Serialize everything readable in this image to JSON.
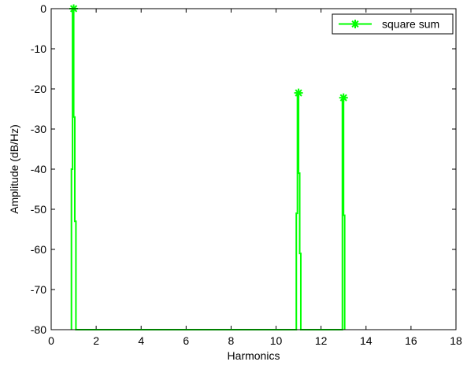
{
  "chart_data": {
    "type": "line",
    "title": "",
    "xlabel": "Harmonics",
    "ylabel": "Amplitude (dB/Hz)",
    "xlim": [
      0,
      18
    ],
    "ylim": [
      -80,
      0
    ],
    "x_ticks": [
      0,
      2,
      4,
      6,
      8,
      10,
      12,
      14,
      16,
      18
    ],
    "x_tick_labels": [
      "0",
      "2",
      "4",
      "6",
      "8",
      "10",
      "12",
      "14",
      "16",
      "18"
    ],
    "y_ticks": [
      0,
      -10,
      -20,
      -30,
      -40,
      -50,
      -60,
      -70,
      -80
    ],
    "y_tick_labels": [
      "0",
      "-10",
      "-20",
      "-30",
      "-40",
      "-50",
      "-60",
      "-70",
      "-80"
    ],
    "grid": false,
    "legend_position": "top-right",
    "series": [
      {
        "name": "square sum",
        "color": "#00ff00",
        "marker": "asterisk",
        "markers": [
          {
            "x": 1,
            "y": 0
          },
          {
            "x": 11,
            "y": -21
          },
          {
            "x": 13,
            "y": -22.2
          }
        ],
        "points": [
          {
            "x": 0.9,
            "y": -80
          },
          {
            "x": 0.9,
            "y": -40
          },
          {
            "x": 0.95,
            "y": -40
          },
          {
            "x": 0.95,
            "y": 0
          },
          {
            "x": 1.0,
            "y": 0
          },
          {
            "x": 1.0,
            "y": -27
          },
          {
            "x": 1.05,
            "y": -27
          },
          {
            "x": 1.05,
            "y": -53
          },
          {
            "x": 1.1,
            "y": -53
          },
          {
            "x": 1.1,
            "y": -80
          },
          {
            "x": 10.9,
            "y": -80
          },
          {
            "x": 10.9,
            "y": -51
          },
          {
            "x": 10.95,
            "y": -51
          },
          {
            "x": 10.95,
            "y": -21
          },
          {
            "x": 11.0,
            "y": -21
          },
          {
            "x": 11.0,
            "y": -41
          },
          {
            "x": 11.05,
            "y": -41
          },
          {
            "x": 11.05,
            "y": -61
          },
          {
            "x": 11.1,
            "y": -61
          },
          {
            "x": 11.1,
            "y": -80
          },
          {
            "x": 12.95,
            "y": -80
          },
          {
            "x": 12.95,
            "y": -22.2
          },
          {
            "x": 13.0,
            "y": -22.2
          },
          {
            "x": 13.0,
            "y": -51.5
          },
          {
            "x": 13.05,
            "y": -51.5
          },
          {
            "x": 13.05,
            "y": -80
          }
        ]
      }
    ]
  }
}
